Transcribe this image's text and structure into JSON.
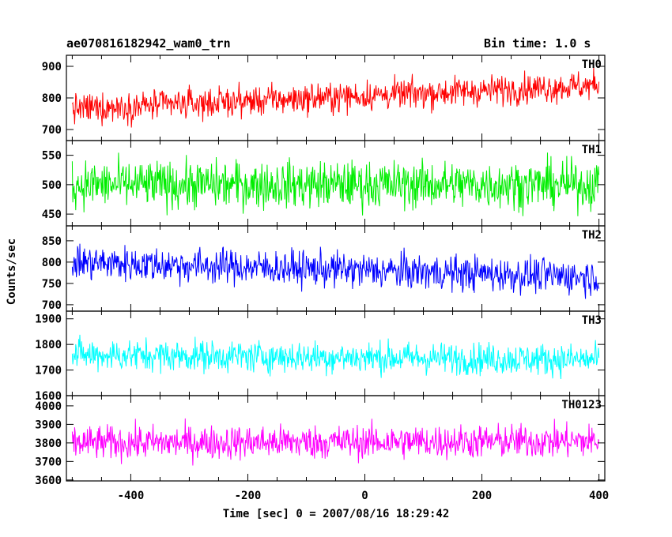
{
  "header": {
    "title": "ae070816182942_wam0_trn",
    "bin_time": "Bin time: 1.0 s"
  },
  "chart_data": {
    "type": "line",
    "xlabel": "Time [sec] 0 = 2007/08/16 18:29:42",
    "ylabel": "Counts/sec",
    "xlim": [
      -510,
      410
    ],
    "x_ticks": [
      -400,
      -200,
      0,
      200,
      400
    ],
    "x_step": 1,
    "x_start": -500,
    "x_end": 400,
    "panels": [
      {
        "name": "TH0",
        "color": "#ff0000",
        "ylim": [
          665,
          935
        ],
        "y_ticks": [
          700,
          800,
          900
        ],
        "mean_start": 765,
        "mean_end": 840,
        "spread": 32
      },
      {
        "name": "TH1",
        "color": "#00ee00",
        "ylim": [
          430,
          575
        ],
        "y_ticks": [
          450,
          500,
          550
        ],
        "mean_start": 500,
        "mean_end": 500,
        "spread": 27
      },
      {
        "name": "TH2",
        "color": "#0000ff",
        "ylim": [
          685,
          885
        ],
        "y_ticks": [
          700,
          750,
          800,
          850
        ],
        "mean_start": 800,
        "mean_end": 765,
        "spread": 28
      },
      {
        "name": "TH3",
        "color": "#00ffff",
        "ylim": [
          1600,
          1930
        ],
        "y_ticks": [
          1600,
          1700,
          1800,
          1900
        ],
        "mean_start": 1760,
        "mean_end": 1740,
        "spread": 42
      },
      {
        "name": "TH0123",
        "color": "#ff00ff",
        "ylim": [
          3595,
          4055
        ],
        "y_ticks": [
          3600,
          3700,
          3800,
          3900,
          4000
        ],
        "mean_start": 3800,
        "mean_end": 3810,
        "spread": 62
      }
    ]
  }
}
